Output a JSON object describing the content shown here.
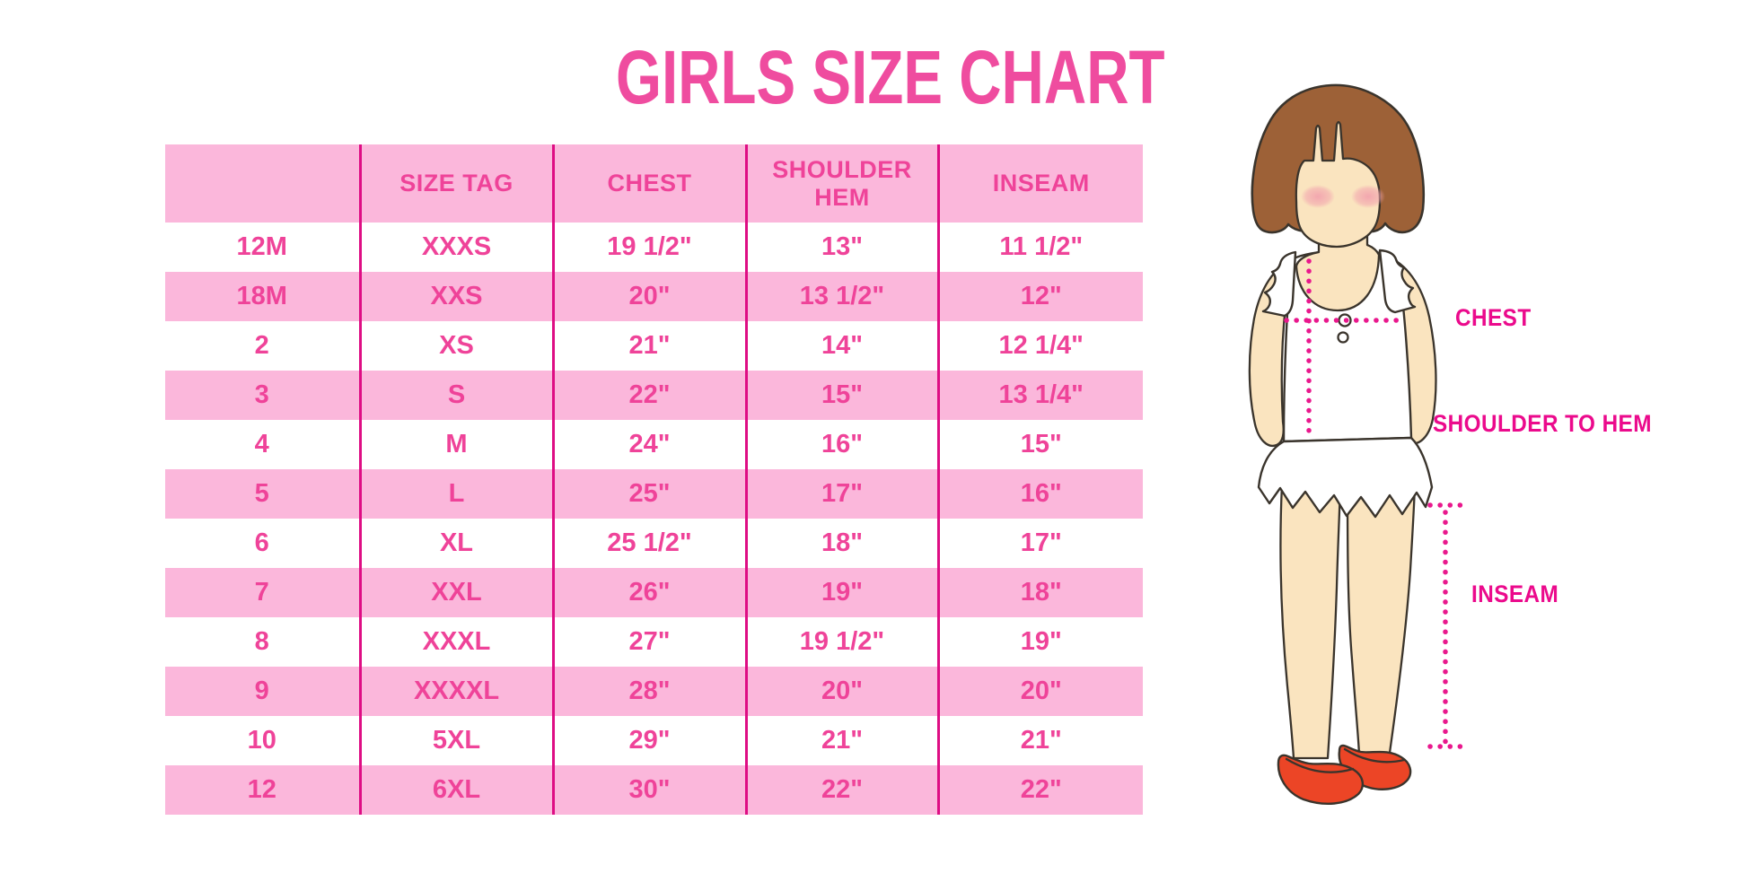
{
  "title": "GIRLS SIZE CHART",
  "table": {
    "columns": [
      "",
      "SIZE TAG",
      "CHEST",
      "SHOULDER HEM",
      "INSEAM"
    ],
    "rows": [
      [
        "12M",
        "XXXS",
        "19 1/2\"",
        "13\"",
        "11 1/2\""
      ],
      [
        "18M",
        "XXS",
        "20\"",
        "13 1/2\"",
        "12\""
      ],
      [
        "2",
        "XS",
        "21\"",
        "14\"",
        "12 1/4\""
      ],
      [
        "3",
        "S",
        "22\"",
        "15\"",
        "13 1/4\""
      ],
      [
        "4",
        "M",
        "24\"",
        "16\"",
        "15\""
      ],
      [
        "5",
        "L",
        "25\"",
        "17\"",
        "16\""
      ],
      [
        "6",
        "XL",
        "25 1/2\"",
        "18\"",
        "17\""
      ],
      [
        "7",
        "XXL",
        "26\"",
        "19\"",
        "18\""
      ],
      [
        "8",
        "XXXL",
        "27\"",
        "19 1/2\"",
        "19\""
      ],
      [
        "9",
        "XXXXL",
        "28\"",
        "20\"",
        "20\""
      ],
      [
        "10",
        "5XL",
        "29\"",
        "21\"",
        "21\""
      ],
      [
        "12",
        "6XL",
        "30\"",
        "22\"",
        "22\""
      ]
    ]
  },
  "diagram": {
    "labels": {
      "chest": "CHEST",
      "shoulder_to_hem": "SHOULDER TO HEM",
      "inseam": "INSEAM"
    }
  },
  "colors": {
    "row-pink": "#FBB7DB",
    "line-magenta": "#DE0D84",
    "table-text": "#EF4399",
    "title-pink": "#EF4C9F",
    "label-magenta": "#EB0A8C",
    "dotted-magenta": "#E9188D",
    "hair-brown": "#9D6137",
    "skin": "#FAE4BF",
    "blush": "#F2A4AE",
    "shoe-red": "#EC4526",
    "outline-dark": "#3A342C"
  }
}
